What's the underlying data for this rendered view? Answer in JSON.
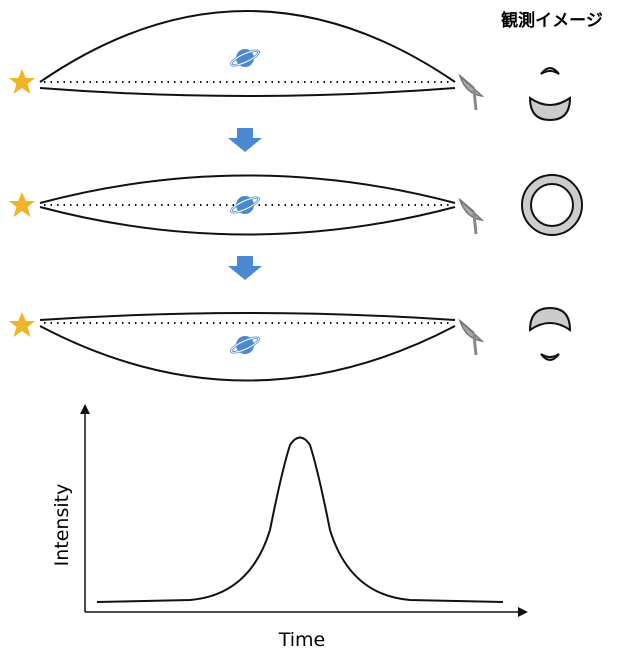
{
  "header": {
    "title": "観測イメージ"
  },
  "graph": {
    "y_label": "Intensity",
    "x_label": "Time"
  }
}
